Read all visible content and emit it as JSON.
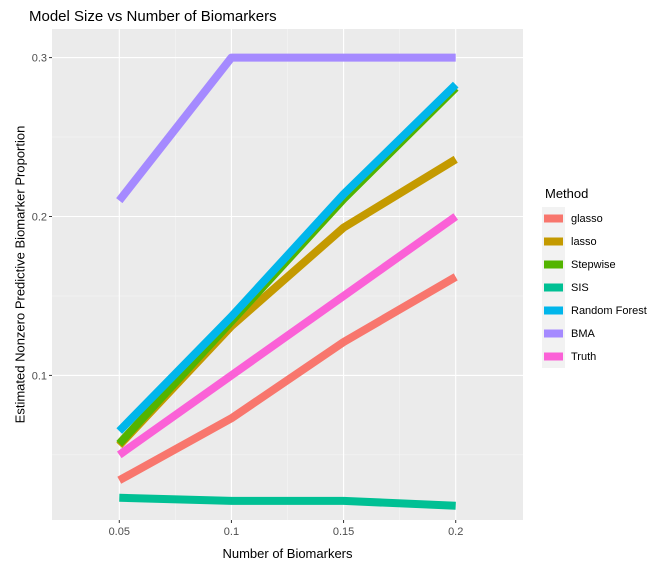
{
  "chart_data": {
    "type": "line",
    "title": "Model Size vs Number of Biomarkers",
    "xlabel": "Number of Biomarkers",
    "ylabel": "Estimated Nonzero Predictive Biomarker Proportion",
    "x": [
      0.05,
      0.1,
      0.15,
      0.2
    ],
    "x_ticks": [
      "0.05",
      "0.1",
      "0.15",
      "0.2"
    ],
    "y_ticks": [
      "0.1",
      "0.2",
      "0.3"
    ],
    "xlim": [
      0.02,
      0.23
    ],
    "ylim": [
      0.009,
      0.318
    ],
    "grid": true,
    "legend": {
      "title": "Method",
      "position": "right"
    },
    "series": [
      {
        "name": "glasso",
        "color": "#F8766D",
        "values": [
          0.034,
          0.073,
          0.121,
          0.162
        ]
      },
      {
        "name": "lasso",
        "color": "#C49A00",
        "values": [
          0.056,
          0.131,
          0.193,
          0.236
        ]
      },
      {
        "name": "Stepwise",
        "color": "#53B400",
        "values": [
          0.057,
          0.134,
          0.211,
          0.281
        ]
      },
      {
        "name": "SIS",
        "color": "#00C094",
        "values": [
          0.023,
          0.021,
          0.021,
          0.018
        ]
      },
      {
        "name": "Random Forest",
        "color": "#00B6EB",
        "values": [
          0.065,
          0.137,
          0.214,
          0.283
        ]
      },
      {
        "name": "BMA",
        "color": "#A58AFF",
        "values": [
          0.21,
          0.3,
          0.3,
          0.3
        ]
      },
      {
        "name": "Truth",
        "color": "#FB61D7",
        "values": [
          0.05,
          0.1,
          0.15,
          0.2
        ]
      }
    ]
  }
}
